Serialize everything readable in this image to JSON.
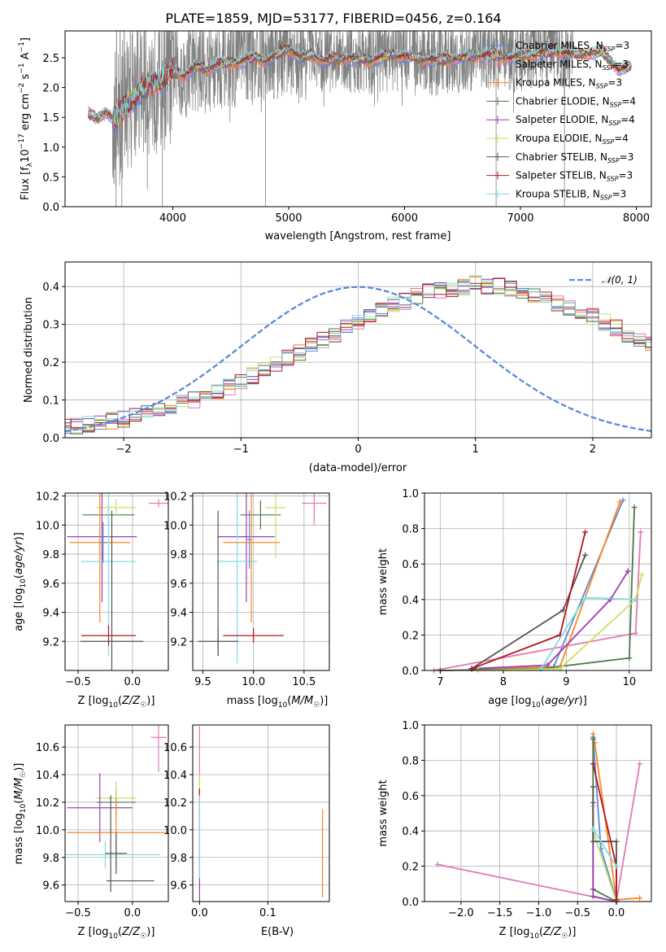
{
  "colors": {
    "chabrier_miles": "#5b8bd8",
    "salpeter_miles": "#e378b6",
    "kroupa_miles": "#ff8522",
    "chabrier_elodie": "#4a7a48",
    "salpeter_elodie": "#9c3fb2",
    "kroupa_elodie": "#c7e06a",
    "chabrier_stelib": "#555555",
    "salpeter_stelib": "#b5171d",
    "kroupa_stelib": "#82dbe2",
    "data": "#7f7f7f",
    "gaussian": "#5b8bd8"
  },
  "chart_data": [
    {
      "id": "spectrum",
      "type": "line",
      "title": "PLATE=1859, MJD=53177, FIBERID=0456, z=0.164",
      "xlabel": "wavelength [Angstrom, rest frame]",
      "ylabel": "Flux [f_λ 10^-17 erg cm^-2 s^-1 A^-1]",
      "xlim": [
        3070,
        8130
      ],
      "ylim": [
        0,
        2.95
      ],
      "xticks": [
        "4000",
        "5000",
        "6000",
        "7000",
        "8000"
      ],
      "yticks": [
        "0.0",
        "0.5",
        "1.0",
        "1.5",
        "2.0",
        "2.5"
      ],
      "legend_position": "top-right",
      "series": [
        {
          "name": "Chabrier MILES, N_SSP=3",
          "ssp": "3",
          "color": "#5b8bd8"
        },
        {
          "name": "Salpeter MILES, N_SSP=3",
          "ssp": "3",
          "color": "#e378b6"
        },
        {
          "name": "Kroupa MILES, N_SSP=3",
          "ssp": "3",
          "color": "#ff8522"
        },
        {
          "name": "Chabrier ELODIE, N_SSP=4",
          "ssp": "4",
          "color": "#4a7a48"
        },
        {
          "name": "Salpeter ELODIE, N_SSP=4",
          "ssp": "4",
          "color": "#9c3fb2"
        },
        {
          "name": "Kroupa ELODIE, N_SSP=4",
          "ssp": "4",
          "color": "#c7e06a"
        },
        {
          "name": "Chabrier STELIB, N_SSP=3",
          "ssp": "3",
          "color": "#555555"
        },
        {
          "name": "Salpeter STELIB, N_SSP=3",
          "ssp": "3",
          "color": "#b5171d"
        },
        {
          "name": "Kroupa STELIB, N_SSP=3",
          "ssp": "3",
          "color": "#82dbe2"
        }
      ],
      "continuum": {
        "x": [
          3270,
          3350,
          3420,
          3500,
          3600,
          3700,
          3800,
          3900,
          4000,
          4100,
          4200,
          4300,
          4400,
          4500,
          4600,
          4700,
          4800,
          4900,
          5000,
          5100,
          5200,
          5300,
          5500,
          5700,
          5900,
          6100,
          6300,
          6500,
          6700,
          6900,
          7100,
          7300,
          7500,
          7700,
          7850,
          7950
        ],
        "y": [
          1.55,
          1.48,
          1.6,
          1.45,
          1.7,
          1.9,
          2.05,
          2.1,
          2.25,
          2.2,
          2.35,
          2.3,
          2.4,
          2.4,
          2.45,
          2.5,
          2.45,
          2.55,
          2.65,
          2.5,
          2.55,
          2.45,
          2.5,
          2.45,
          2.55,
          2.5,
          2.45,
          2.5,
          2.55,
          2.5,
          2.55,
          2.6,
          2.55,
          2.6,
          2.3,
          2.35
        ]
      },
      "noisy_range": [
        3480,
        7450
      ],
      "spikes": [
        {
          "x": 3510,
          "ymin": 0.0
        },
        {
          "x": 3560,
          "ymin": 0.0
        },
        {
          "x": 3780,
          "ymin": 0.3
        },
        {
          "x": 3910,
          "ymin": 0.0
        },
        {
          "x": 4800,
          "ymin": 0.0
        },
        {
          "x": 6790,
          "ymin": 0.0
        },
        {
          "x": 7380,
          "ymin": 0.0
        }
      ]
    },
    {
      "id": "residuals",
      "type": "step",
      "xlabel": "(data-model)/error",
      "ylabel": "Normed distribution",
      "xlim": [
        -2.5,
        2.5
      ],
      "ylim": [
        0,
        0.465
      ],
      "xticks": [
        -2,
        -1,
        0,
        1,
        2
      ],
      "xtick_labels": [
        "−2",
        "−1",
        "0",
        "1",
        "2"
      ],
      "yticks": [
        "0.0",
        "0.1",
        "0.2",
        "0.3",
        "0.4"
      ],
      "grid": true,
      "legend_position": "top-right",
      "gaussian_label": "𝒩(0, 1)",
      "bin_width": 0.1,
      "base_hist": [
        0.03,
        0.03,
        0.035,
        0.04,
        0.045,
        0.05,
        0.06,
        0.065,
        0.07,
        0.08,
        0.09,
        0.1,
        0.11,
        0.12,
        0.135,
        0.15,
        0.165,
        0.18,
        0.195,
        0.21,
        0.225,
        0.245,
        0.26,
        0.275,
        0.29,
        0.305,
        0.32,
        0.335,
        0.35,
        0.36,
        0.375,
        0.385,
        0.39,
        0.395,
        0.4,
        0.41,
        0.4,
        0.4,
        0.395,
        0.39,
        0.38,
        0.365,
        0.355,
        0.345,
        0.33,
        0.32,
        0.305,
        0.29,
        0.275,
        0.26,
        0.25,
        0.235,
        0.22,
        0.21,
        0.195,
        0.18,
        0.165,
        0.15,
        0.14,
        0.13,
        0.115,
        0.105,
        0.095,
        0.085,
        0.08,
        0.07,
        0.06,
        0.055,
        0.05,
        0.045,
        0.04,
        0.035,
        0.03,
        0.03,
        0.025
      ]
    },
    {
      "id": "age_vs_Z",
      "type": "errorbar",
      "xlabel": "Z [log10(Z/Z☉)]",
      "ylabel": "age [log10(age/yr)]",
      "xlim": [
        -0.62,
        0.33
      ],
      "ylim": [
        9.0,
        10.22
      ],
      "xticks": [
        "−0.5",
        "0.0"
      ],
      "yticks": [
        "9.2",
        "9.4",
        "9.6",
        "9.8",
        "10.0",
        "10.2"
      ],
      "grid": true,
      "points": [
        {
          "ref": "salpeter_miles",
          "x": 0.24,
          "xerr": 0.09,
          "y": 10.15,
          "yerr": 0.03
        },
        {
          "ref": "chabrier_elodie",
          "x": -0.22,
          "xerr": 0.24,
          "y": 10.07,
          "yerr": 0.07
        },
        {
          "ref": "kroupa_elodie",
          "x": -0.15,
          "xerr": 0.18,
          "y": 10.12,
          "yerr": 0.06
        },
        {
          "ref": "salpeter_elodie",
          "x": -0.28,
          "xerr": 0.32,
          "y": 9.92,
          "yerr": 0.45
        },
        {
          "ref": "kroupa_miles",
          "x": -0.3,
          "xerr": 0.28,
          "y": 9.88,
          "yerr": 0.55
        },
        {
          "ref": "kroupa_stelib",
          "x": -0.22,
          "xerr": 0.25,
          "y": 9.75,
          "yerr": 0.65
        },
        {
          "ref": "salpeter_stelib",
          "x": -0.22,
          "xerr": 0.25,
          "y": 9.24,
          "yerr": 0.07
        },
        {
          "ref": "chabrier_stelib",
          "x": -0.19,
          "xerr": 0.29,
          "y": 9.2,
          "yerr": 0.9
        },
        {
          "ref": "chabrier_miles",
          "x": -0.27,
          "xerr": 0.03,
          "y": 9.88,
          "yerr": 0.14
        }
      ]
    },
    {
      "id": "age_vs_mass",
      "type": "errorbar",
      "xlabel": "mass [log10(M/M☉)]",
      "ylabel": "",
      "xlim": [
        9.4,
        10.75
      ],
      "ylim": [
        9.0,
        10.22
      ],
      "xticks": [
        "9.5",
        "10.0",
        "10.5"
      ],
      "yticks": [
        "9.2",
        "9.4",
        "9.6",
        "9.8",
        "10.0",
        "10.2"
      ],
      "grid": true,
      "points": [
        {
          "ref": "salpeter_miles",
          "x": 10.6,
          "xerr": 0.12,
          "y": 10.15,
          "yerr": 0.15
        },
        {
          "ref": "chabrier_elodie",
          "x": 10.07,
          "xerr": 0.2,
          "y": 10.07,
          "yerr": 0.1
        },
        {
          "ref": "kroupa_elodie",
          "x": 10.22,
          "xerr": 0.1,
          "y": 10.12,
          "yerr": 0.35
        },
        {
          "ref": "salpeter_elodie",
          "x": 9.93,
          "xerr": 0.28,
          "y": 9.92,
          "yerr": 0.45
        },
        {
          "ref": "kroupa_miles",
          "x": 9.98,
          "xerr": 0.28,
          "y": 9.88,
          "yerr": 0.55
        },
        {
          "ref": "kroupa_stelib",
          "x": 9.84,
          "xerr": 0.2,
          "y": 9.75,
          "yerr": 0.7
        },
        {
          "ref": "salpeter_stelib",
          "x": 10.0,
          "xerr": 0.3,
          "y": 9.24,
          "yerr": 0.05
        },
        {
          "ref": "chabrier_stelib",
          "x": 9.65,
          "xerr": 0.2,
          "y": 9.2,
          "yerr": 0.1
        },
        {
          "ref": "chabrier_stelib",
          "x": 9.65,
          "xerr": 0.0,
          "y": 9.6,
          "yerr": 0.5
        },
        {
          "ref": "chabrier_miles",
          "x": 9.96,
          "xerr": 0.02,
          "y": 9.9,
          "yerr": 0.2
        }
      ]
    },
    {
      "id": "weight_vs_age",
      "type": "line",
      "xlabel": "age [log10(age/yr)]",
      "ylabel": "mass weight",
      "xlim": [
        6.75,
        10.35
      ],
      "ylim": [
        0,
        1.0
      ],
      "xticks": [
        "7",
        "8",
        "9",
        "10"
      ],
      "yticks": [
        "0.0",
        "0.2",
        "0.4",
        "0.6",
        "0.8",
        "1.0"
      ],
      "grid": true,
      "series": [
        {
          "ref": "chabrier_miles",
          "x": [
            7.5,
            8.8,
            9.9
          ],
          "y": [
            0.01,
            0.02,
            0.96
          ]
        },
        {
          "ref": "salpeter_miles",
          "x": [
            6.9,
            10.1,
            10.18
          ],
          "y": [
            0.0,
            0.21,
            0.78
          ]
        },
        {
          "ref": "kroupa_miles",
          "x": [
            7.5,
            8.9,
            9.85
          ],
          "y": [
            0.01,
            0.02,
            0.95
          ]
        },
        {
          "ref": "chabrier_elodie",
          "x": [
            7.0,
            8.6,
            10.0,
            10.08
          ],
          "y": [
            0.0,
            0.01,
            0.07,
            0.92
          ]
        },
        {
          "ref": "salpeter_elodie",
          "x": [
            7.5,
            8.7,
            9.7,
            9.98
          ],
          "y": [
            0.01,
            0.03,
            0.4,
            0.56
          ]
        },
        {
          "ref": "kroupa_elodie",
          "x": [
            7.6,
            8.9,
            10.1,
            10.2
          ],
          "y": [
            0.0,
            0.01,
            0.4,
            0.54
          ]
        },
        {
          "ref": "chabrier_stelib",
          "x": [
            7.5,
            8.95,
            9.3
          ],
          "y": [
            0.01,
            0.34,
            0.65
          ]
        },
        {
          "ref": "salpeter_stelib",
          "x": [
            7.5,
            8.9,
            9.3
          ],
          "y": [
            0.01,
            0.2,
            0.78
          ]
        },
        {
          "ref": "kroupa_stelib",
          "x": [
            8.6,
            9.3,
            10.1
          ],
          "y": [
            0.01,
            0.41,
            0.4
          ]
        }
      ]
    },
    {
      "id": "mass_vs_Z",
      "type": "errorbar",
      "xlabel": "Z [log10(Z/Z☉)]",
      "ylabel": "mass [log10(M/M☉)]",
      "xlim": [
        -0.62,
        0.33
      ],
      "ylim": [
        9.48,
        10.76
      ],
      "xticks": [
        "−0.5",
        "0.0"
      ],
      "yticks": [
        "9.6",
        "9.8",
        "10.0",
        "10.2",
        "10.4",
        "10.6"
      ],
      "grid": true,
      "points": [
        {
          "ref": "salpeter_miles",
          "x": 0.24,
          "xerr": 0.07,
          "y": 10.67,
          "yerr": 0.25
        },
        {
          "ref": "chabrier_elodie",
          "x": -0.15,
          "xerr": 0.18,
          "y": 10.2,
          "yerr": 0.1
        },
        {
          "ref": "kroupa_elodie",
          "x": -0.15,
          "xerr": 0.18,
          "y": 10.23,
          "yerr": 0.12
        },
        {
          "ref": "salpeter_elodie",
          "x": -0.3,
          "xerr": 0.3,
          "y": 10.16,
          "yerr": 0.25
        },
        {
          "ref": "kroupa_miles",
          "x": -0.15,
          "xerr": 0.45,
          "y": 9.98,
          "yerr": 0.25
        },
        {
          "ref": "kroupa_stelib",
          "x": -0.25,
          "xerr": 0.5,
          "y": 9.82,
          "yerr": 0.1
        },
        {
          "ref": "chabrier_stelib",
          "x": -0.15,
          "xerr": 0.1,
          "y": 9.83,
          "yerr": 0.15
        },
        {
          "ref": "chabrier_stelib",
          "x": -0.2,
          "xerr": 0.0,
          "y": 9.9,
          "yerr": 0.35
        },
        {
          "ref": "chabrier_stelib",
          "x": -0.02,
          "xerr": 0.22,
          "y": 9.63,
          "yerr": 0.0
        }
      ]
    },
    {
      "id": "mass_vs_ebv",
      "type": "errorbar",
      "xlabel": "E(B-V)",
      "ylabel": "",
      "xlim": [
        -0.01,
        0.19
      ],
      "ylim": [
        9.48,
        10.76
      ],
      "xticks": [
        "0.0",
        "0.1"
      ],
      "yticks": [
        "9.6",
        "9.8",
        "10.0",
        "10.2",
        "10.4",
        "10.6"
      ],
      "grid": true,
      "points": [
        {
          "ref": "salpeter_miles",
          "x": 0.0,
          "xerr": 0.0,
          "y": 10.5,
          "yerr": 0.25
        },
        {
          "ref": "kroupa_elodie",
          "x": 0.0,
          "xerr": 0.0,
          "y": 10.3,
          "yerr": 0.1
        },
        {
          "ref": "salpeter_stelib",
          "x": 0.0,
          "xerr": 0.0,
          "y": 10.2,
          "yerr": 0.1
        },
        {
          "ref": "salpeter_elodie",
          "x": 0.0,
          "xerr": 0.0,
          "y": 9.8,
          "yerr": 0.35
        },
        {
          "ref": "kroupa_stelib",
          "x": 0.0,
          "xerr": 0.0,
          "y": 9.95,
          "yerr": 0.3
        },
        {
          "ref": "kroupa_miles",
          "x": 0.18,
          "xerr": 0.0,
          "y": 9.83,
          "yerr": 0.32
        }
      ]
    },
    {
      "id": "weight_vs_Z",
      "type": "line",
      "xlabel": "Z [log10(Z/Z☉)]",
      "ylabel": "mass weight",
      "xlim": [
        -2.47,
        0.45
      ],
      "ylim": [
        0,
        1.0
      ],
      "xticks": [
        "−2.0",
        "−1.5",
        "−1.0",
        "−0.5",
        "0.0"
      ],
      "xtick_values": [
        -2.0,
        -1.5,
        -1.0,
        -0.5,
        0.0
      ],
      "yticks": [
        "0.0",
        "0.2",
        "0.4",
        "0.6",
        "0.8",
        "1.0"
      ],
      "grid": true,
      "series": [
        {
          "ref": "salpeter_miles",
          "x": [
            -2.3,
            0.0,
            0.3
          ],
          "y": [
            0.21,
            0.0,
            0.78
          ]
        },
        {
          "ref": "kroupa_miles",
          "x": [
            -0.3,
            -0.28,
            0.0,
            0.3
          ],
          "y": [
            0.95,
            0.9,
            0.01,
            0.02
          ]
        },
        {
          "ref": "chabrier_miles",
          "x": [
            -0.3,
            -0.2,
            0.0
          ],
          "y": [
            0.93,
            0.3,
            0.01
          ]
        },
        {
          "ref": "chabrier_elodie",
          "x": [
            -0.3,
            -0.3,
            0.0,
            0.0
          ],
          "y": [
            0.92,
            0.07,
            0.0,
            0.01
          ]
        },
        {
          "ref": "salpeter_elodie",
          "x": [
            -0.3,
            -0.3,
            0.0
          ],
          "y": [
            0.56,
            0.03,
            0.0
          ]
        },
        {
          "ref": "kroupa_elodie",
          "x": [
            -0.3,
            -0.3,
            0.0
          ],
          "y": [
            0.54,
            0.4,
            0.0
          ]
        },
        {
          "ref": "chabrier_stelib",
          "x": [
            -0.3,
            -0.3,
            0.0,
            0.0
          ],
          "y": [
            0.65,
            0.34,
            0.34,
            0.01
          ]
        },
        {
          "ref": "salpeter_stelib",
          "x": [
            -0.3,
            0.0,
            0.0
          ],
          "y": [
            0.78,
            0.2,
            0.01
          ]
        },
        {
          "ref": "kroupa_stelib",
          "x": [
            -0.3,
            0.0
          ],
          "y": [
            0.41,
            0.2
          ]
        }
      ]
    }
  ]
}
